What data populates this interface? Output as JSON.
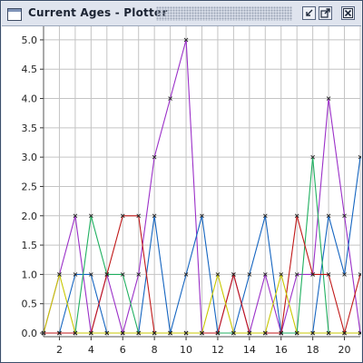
{
  "window": {
    "title": "Current Ages - Plotter",
    "icons": {
      "app": "window-app-icon",
      "iconify": "iconify-icon",
      "maximize": "maximize-icon",
      "close": "close-icon"
    }
  },
  "chart_data": {
    "type": "line",
    "title": "",
    "xlabel": "",
    "ylabel": "",
    "xlim": [
      1,
      21
    ],
    "ylim": [
      0,
      5.2
    ],
    "grid": true,
    "x_ticks": [
      "2",
      "4",
      "6",
      "8",
      "10",
      "12",
      "14",
      "16",
      "18",
      "20"
    ],
    "y_ticks": [
      "0.0",
      "0.5",
      "1.0",
      "1.5",
      "2.0",
      "2.5",
      "3.0",
      "3.5",
      "4.0",
      "4.5",
      "5.0"
    ],
    "series": [
      {
        "color": "#9b30c8",
        "x": [
          1,
          2,
          3,
          4,
          5,
          6,
          7,
          8,
          9,
          10,
          11,
          12,
          13,
          14,
          15,
          16,
          17,
          18,
          19,
          20,
          21
        ],
        "y": [
          0,
          1,
          2,
          0,
          1,
          0,
          1,
          3,
          4,
          5,
          0,
          0,
          1,
          0,
          1,
          0,
          1,
          1,
          4,
          2,
          0
        ]
      },
      {
        "color": "#1565c0",
        "x": [
          1,
          2,
          3,
          4,
          5,
          6,
          7,
          8,
          9,
          10,
          11,
          12,
          13,
          14,
          15,
          16,
          17,
          18,
          19,
          20,
          21
        ],
        "y": [
          0,
          0,
          1,
          1,
          0,
          0,
          0,
          2,
          0,
          1,
          2,
          0,
          0,
          1,
          2,
          0,
          0,
          0,
          2,
          1,
          3
        ]
      },
      {
        "color": "#20b060",
        "x": [
          1,
          2,
          3,
          4,
          5,
          6,
          7,
          8,
          9,
          10,
          11,
          12,
          13,
          14,
          15,
          16,
          17,
          18,
          19,
          20,
          21
        ],
        "y": [
          0,
          0,
          0,
          2,
          1,
          1,
          0,
          0,
          0,
          0,
          0,
          0,
          0,
          0,
          0,
          0,
          0,
          3,
          0,
          0,
          0
        ]
      },
      {
        "color": "#c01818",
        "x": [
          1,
          2,
          3,
          4,
          5,
          6,
          7,
          8,
          9,
          10,
          11,
          12,
          13,
          14,
          15,
          16,
          17,
          18,
          19,
          20,
          21
        ],
        "y": [
          0,
          0,
          0,
          0,
          1,
          2,
          2,
          0,
          0,
          0,
          0,
          0,
          1,
          0,
          0,
          0,
          2,
          1,
          1,
          0,
          1
        ]
      },
      {
        "color": "#c8c800",
        "x": [
          1,
          2,
          3,
          4,
          5,
          6,
          7,
          8,
          9,
          10,
          11,
          12,
          13,
          14,
          15,
          16,
          17,
          18,
          19,
          20,
          21
        ],
        "y": [
          0,
          1,
          0,
          0,
          0,
          0,
          0,
          0,
          0,
          0,
          0,
          1,
          0,
          0,
          0,
          1,
          0,
          0,
          0,
          0,
          0
        ]
      }
    ]
  }
}
